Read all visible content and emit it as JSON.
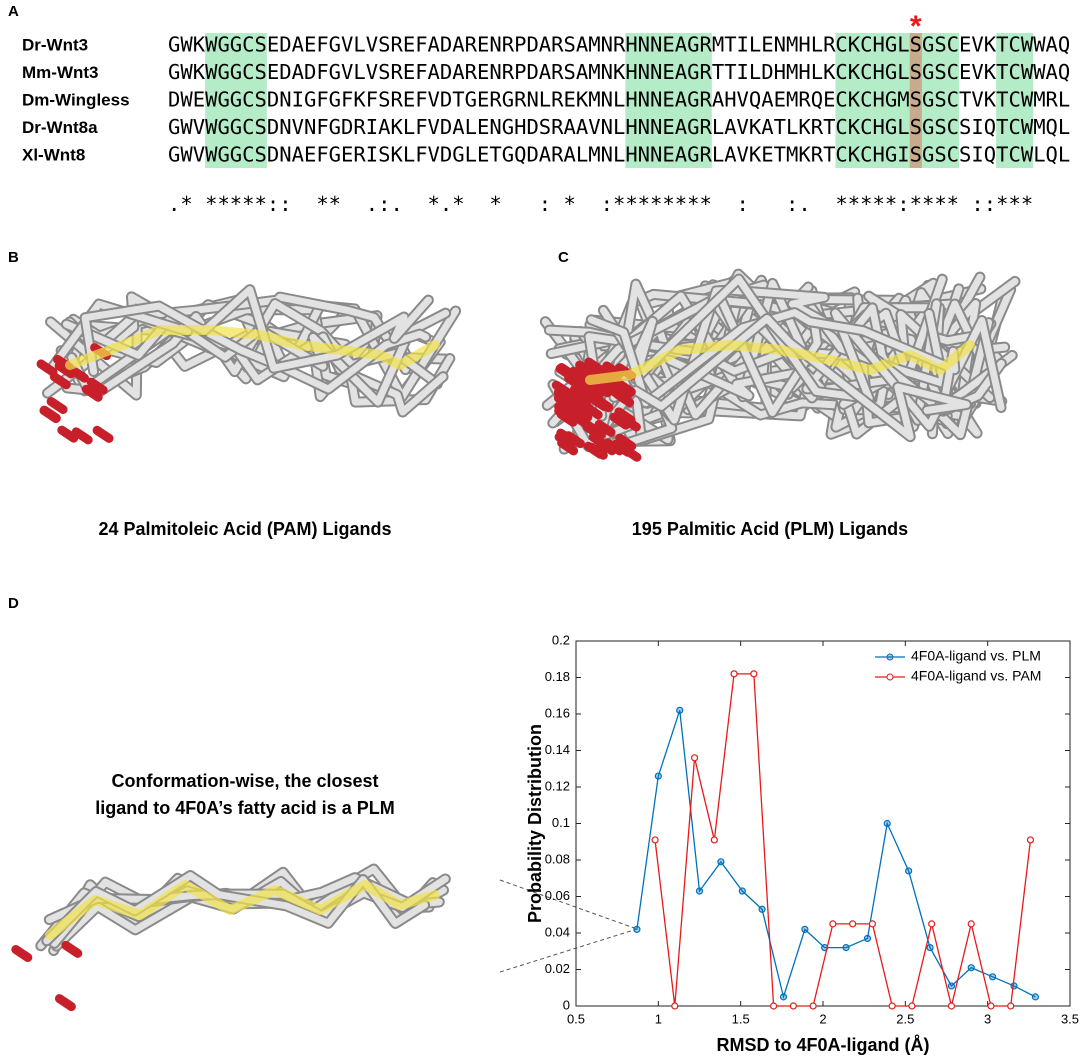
{
  "panel_labels": [
    "A",
    "B",
    "C",
    "D"
  ],
  "alignment": {
    "marker": "*",
    "rows": [
      {
        "name": "Dr-Wnt3",
        "sequence": "GWKWGGCSEDAEFGVLVSREFADARENRPDARSAMNRHNNEAGRMTILENMHLRCKCHGLSGSCEVKTCWWAQ"
      },
      {
        "name": "Mm-Wnt3",
        "sequence": "GWKWGGCSEDADFGVLVSREFADARENRPDARSAMNKHNNEAGRTTILDHMHLKCKCHGLSGSCEVKTCWWAQ"
      },
      {
        "name": "Dm-Wingless",
        "sequence": "DWEWGGCSDNIGFGFKFSREFVDTGERGRNLREKMNLHNNEAGRAHVQAEMRQECKCHGMSGSCTVKTCWMRL"
      },
      {
        "name": "Dr-Wnt8a",
        "sequence": "GWVWGGCSDNVNFGDRIAKLFVDALENGHDSRAAVNLHNNEAGRLAVKATLKRTCKCHGLSGSCSIQTCWMQL"
      },
      {
        "name": "Xl-Wnt8",
        "sequence": "GWVWGGCSDNAEFGERISKLFVDGLETGQDARALMNLHNNEAGRLAVKETMKRTCKCHGISGSCSIQTCWLQL"
      }
    ],
    "consensus": ".* *****::  **  .:.  *.*  *   : *  :********  :   :.  *****:**** ::***"
  },
  "captions": {
    "b": "24 Palmitoleic Acid (PAM) Ligands",
    "c": "195 Palmitic Acid (PLM) Ligands",
    "d": [
      "Conformation-wise, the closest",
      "ligand to 4F0A’s fatty acid is a PLM"
    ]
  },
  "chart_data": {
    "type": "line",
    "xlabel": "RMSD to 4F0A-ligand (Å)",
    "ylabel": "Probability Distribution",
    "xlim": [
      0.5,
      3.5
    ],
    "ylim": [
      0,
      0.2
    ],
    "xticks": [
      0.5,
      1,
      1.5,
      2,
      2.5,
      3,
      3.5
    ],
    "yticks": [
      0,
      0.02,
      0.04,
      0.06,
      0.08,
      0.1,
      0.12,
      0.14,
      0.16,
      0.18,
      0.2
    ],
    "legend": "upper right",
    "series": [
      {
        "name": "4F0A-ligand vs. PLM",
        "color": "#0072bd",
        "x": [
          0.87,
          1.0,
          1.13,
          1.25,
          1.38,
          1.51,
          1.63,
          1.76,
          1.89,
          2.01,
          2.14,
          2.27,
          2.39,
          2.52,
          2.65,
          2.78,
          2.9,
          3.03,
          3.16,
          3.29
        ],
        "values": [
          0.042,
          0.126,
          0.162,
          0.063,
          0.079,
          0.063,
          0.053,
          0.005,
          0.042,
          0.032,
          0.032,
          0.037,
          0.1,
          0.074,
          0.032,
          0.011,
          0.021,
          0.016,
          0.011,
          0.005
        ]
      },
      {
        "name": "4F0A-ligand vs. PAM",
        "color": "#e8191b",
        "x": [
          0.98,
          1.1,
          1.22,
          1.34,
          1.46,
          1.58,
          1.7,
          1.82,
          1.94,
          2.06,
          2.18,
          2.3,
          2.42,
          2.54,
          2.66,
          2.78,
          2.9,
          3.02,
          3.14,
          3.26
        ],
        "values": [
          0.091,
          0,
          0.136,
          0.091,
          0.182,
          0.182,
          0,
          0,
          0,
          0.045,
          0.045,
          0.045,
          0,
          0,
          0.045,
          0,
          0.045,
          0,
          0,
          0.091
        ]
      }
    ]
  }
}
